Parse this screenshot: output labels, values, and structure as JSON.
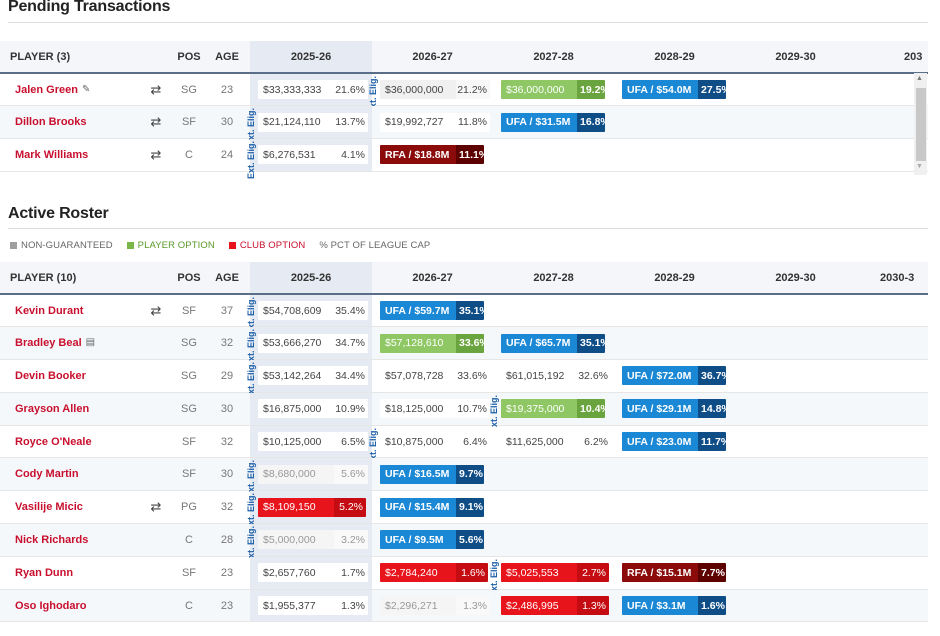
{
  "pending": {
    "title": "Pending Transactions",
    "headers": {
      "player": "PLAYER (3)",
      "pos": "POS",
      "age": "AGE",
      "y1": "2025-26",
      "y2": "2026-27",
      "y3": "2027-28",
      "y4": "2028-29",
      "y5": "2029-30",
      "y6": "203"
    },
    "rows": [
      {
        "name": "Jalen Green",
        "icon": "✎",
        "trade": "⇄",
        "pos": "SG",
        "age": "23",
        "c1": {
          "amt": "$33,333,333",
          "pct": "21.6%"
        },
        "c2": {
          "amt": "$36,000,000",
          "pct": "21.2%"
        },
        "c3": {
          "amt": "$36,000,000",
          "pct": "19.2%"
        },
        "c4": {
          "amt": "UFA / $54.0M",
          "pct": "27.5%"
        }
      },
      {
        "name": "Dillon Brooks",
        "icon": "",
        "trade": "⇄",
        "pos": "SF",
        "age": "30",
        "c1": {
          "amt": "$21,124,110",
          "pct": "13.7%"
        },
        "c2": {
          "amt": "$19,992,727",
          "pct": "11.8%"
        },
        "c3": {
          "amt": "UFA / $31.5M",
          "pct": "16.8%"
        }
      },
      {
        "name": "Mark Williams",
        "icon": "",
        "trade": "⇄",
        "pos": "C",
        "age": "24",
        "c1": {
          "amt": "$6,276,531",
          "pct": "4.1%"
        },
        "c2": {
          "amt": "RFA / $18.8M",
          "pct": "11.1%"
        }
      }
    ]
  },
  "active": {
    "title": "Active Roster",
    "legend": {
      "ng": "NON-GUARANTEED",
      "po": "PLAYER OPTION",
      "co": "CLUB OPTION",
      "pct": "% PCT OF LEAGUE CAP"
    },
    "headers": {
      "player": "PLAYER (10)",
      "pos": "POS",
      "age": "AGE",
      "y1": "2025-26",
      "y2": "2026-27",
      "y3": "2027-28",
      "y4": "2028-29",
      "y5": "2029-30",
      "y6": "2030-3"
    },
    "rows": [
      {
        "name": "Kevin Durant",
        "trade": "⇄",
        "pos": "SF",
        "age": "37",
        "c1": {
          "amt": "$54,708,609",
          "pct": "35.4%"
        },
        "c2": {
          "amt": "UFA / $59.7M",
          "pct": "35.1%"
        }
      },
      {
        "name": "Bradley Beal",
        "icon": "▤",
        "trade": "",
        "pos": "SG",
        "age": "32",
        "c1": {
          "amt": "$53,666,270",
          "pct": "34.7%"
        },
        "c2": {
          "amt": "$57,128,610",
          "pct": "33.6%"
        },
        "c3": {
          "amt": "UFA / $65.7M",
          "pct": "35.1%"
        }
      },
      {
        "name": "Devin Booker",
        "trade": "",
        "pos": "SG",
        "age": "29",
        "c1": {
          "amt": "$53,142,264",
          "pct": "34.4%"
        },
        "c2": {
          "amt": "$57,078,728",
          "pct": "33.6%"
        },
        "c3": {
          "amt": "$61,015,192",
          "pct": "32.6%"
        },
        "c4": {
          "amt": "UFA / $72.0M",
          "pct": "36.7%"
        }
      },
      {
        "name": "Grayson Allen",
        "trade": "",
        "pos": "SG",
        "age": "30",
        "c1": {
          "amt": "$16,875,000",
          "pct": "10.9%"
        },
        "c2": {
          "amt": "$18,125,000",
          "pct": "10.7%"
        },
        "c3": {
          "amt": "$19,375,000",
          "pct": "10.4%"
        },
        "c4": {
          "amt": "UFA / $29.1M",
          "pct": "14.8%"
        }
      },
      {
        "name": "Royce O'Neale",
        "trade": "",
        "pos": "SF",
        "age": "32",
        "c1": {
          "amt": "$10,125,000",
          "pct": "6.5%"
        },
        "c2": {
          "amt": "$10,875,000",
          "pct": "6.4%"
        },
        "c3": {
          "amt": "$11,625,000",
          "pct": "6.2%"
        },
        "c4": {
          "amt": "UFA / $23.0M",
          "pct": "11.7%"
        }
      },
      {
        "name": "Cody Martin",
        "trade": "",
        "pos": "SF",
        "age": "30",
        "c1": {
          "amt": "$8,680,000",
          "pct": "5.6%"
        },
        "c2": {
          "amt": "UFA / $16.5M",
          "pct": "9.7%"
        }
      },
      {
        "name": "Vasilije Micic",
        "trade": "⇄",
        "pos": "PG",
        "age": "32",
        "c1": {
          "amt": "$8,109,150",
          "pct": "5.2%"
        },
        "c2": {
          "amt": "UFA / $15.4M",
          "pct": "9.1%"
        }
      },
      {
        "name": "Nick Richards",
        "trade": "",
        "pos": "C",
        "age": "28",
        "c1": {
          "amt": "$5,000,000",
          "pct": "3.2%"
        },
        "c2": {
          "amt": "UFA / $9.5M",
          "pct": "5.6%"
        }
      },
      {
        "name": "Ryan Dunn",
        "trade": "",
        "pos": "SF",
        "age": "23",
        "c1": {
          "amt": "$2,657,760",
          "pct": "1.7%"
        },
        "c2": {
          "amt": "$2,784,240",
          "pct": "1.6%"
        },
        "c3": {
          "amt": "$5,025,553",
          "pct": "2.7%"
        },
        "c4": {
          "amt": "RFA / $15.1M",
          "pct": "7.7%"
        }
      },
      {
        "name": "Oso Ighodaro",
        "trade": "",
        "pos": "C",
        "age": "23",
        "c1": {
          "amt": "$1,955,377",
          "pct": "1.3%"
        },
        "c2": {
          "amt": "$2,296,271",
          "pct": "1.3%"
        },
        "c3": {
          "amt": "$2,486,995",
          "pct": "1.3%"
        },
        "c4": {
          "amt": "UFA / $3.1M",
          "pct": "1.6%"
        }
      }
    ]
  },
  "elig_label": "Ext. Elig.",
  "elig_label_short": "xt. Elig.",
  "colors": {
    "ng": "#9e9e9e",
    "po": "#7ab648",
    "co": "#e8141c",
    "ufa": "#1b88d6",
    "rfa": "#8b0b0b"
  }
}
